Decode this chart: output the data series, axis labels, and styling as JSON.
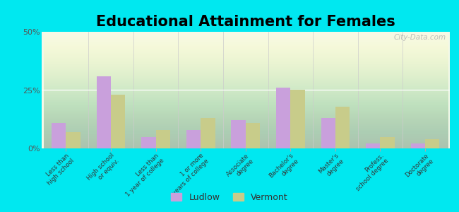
{
  "title": "Educational Attainment for Females",
  "categories": [
    "Less than\nhigh school",
    "High school\nor equiv.",
    "Less than\n1 year of college",
    "1 or more\nyears of college",
    "Associate\ndegree",
    "Bachelor's\ndegree",
    "Master's\ndegree",
    "Profess.\nschool degree",
    "Doctorate\ndegree"
  ],
  "ludlow": [
    11,
    31,
    5,
    8,
    12,
    26,
    13,
    2,
    2
  ],
  "vermont": [
    7,
    23,
    8,
    13,
    11,
    25,
    18,
    5,
    4
  ],
  "ludlow_color": "#c9a0dc",
  "vermont_color": "#c8cc8a",
  "background_outer": "#00e8f0",
  "ylim": [
    0,
    50
  ],
  "yticks": [
    0,
    25,
    50
  ],
  "ytick_labels": [
    "0%",
    "25%",
    "50%"
  ],
  "title_fontsize": 15,
  "legend_labels": [
    "Ludlow",
    "Vermont"
  ],
  "watermark": "City-Data.com"
}
